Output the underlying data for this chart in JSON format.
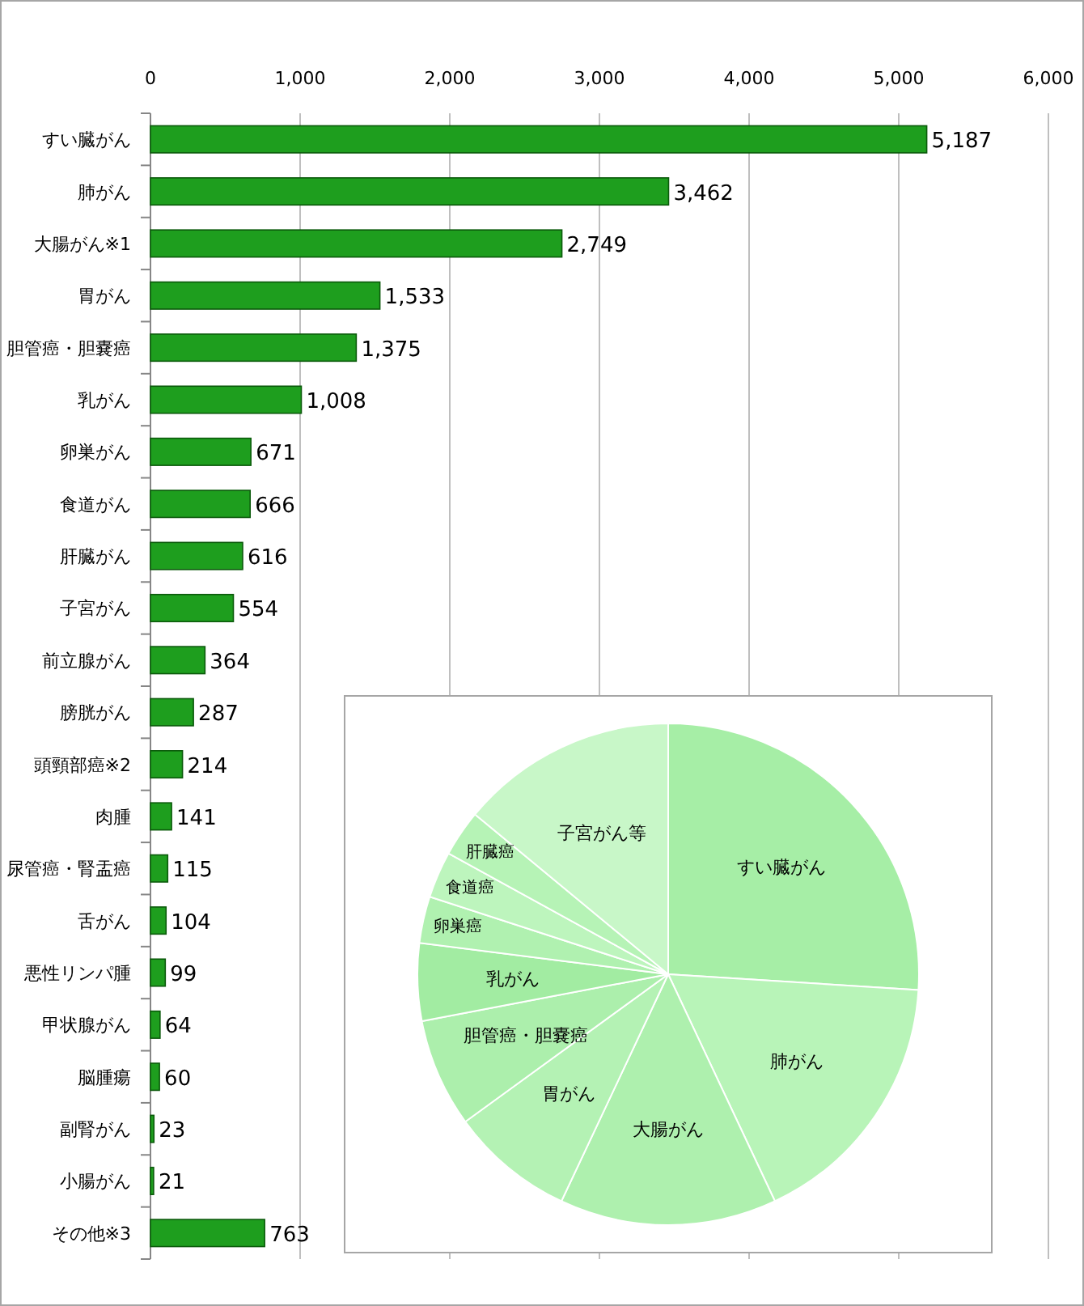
{
  "chart_data": [
    {
      "type": "bar",
      "orientation": "horizontal",
      "categories": [
        "すい臓がん",
        "肺がん",
        "大腸がん※1",
        "胃がん",
        "胆管癌・胆嚢癌",
        "乳がん",
        "卵巣がん",
        "食道がん",
        "肝臓がん",
        "子宮がん",
        "前立腺がん",
        "膀胱がん",
        "頭頸部癌※2",
        "肉腫",
        "尿管癌・腎盂癌",
        "舌がん",
        "悪性リンパ腫",
        "甲状腺がん",
        "脳腫瘍",
        "副腎がん",
        "小腸がん",
        "その他※3"
      ],
      "values": [
        5187,
        3462,
        2749,
        1533,
        1375,
        1008,
        671,
        666,
        616,
        554,
        364,
        287,
        214,
        141,
        115,
        104,
        99,
        64,
        60,
        23,
        21,
        763
      ],
      "value_labels": [
        "5,187",
        "3,462",
        "2,749",
        "1,533",
        "1,375",
        "1,008",
        "671",
        "666",
        "616",
        "554",
        "364",
        "287",
        "214",
        "141",
        "115",
        "104",
        "99",
        "64",
        "60",
        "23",
        "21",
        "763"
      ],
      "color": "#1e9e1e",
      "xlim": [
        0,
        6000
      ],
      "xticks": [
        0,
        {
          "value": 1000,
          "label": "1,000"
        },
        {
          "value": 2000,
          "label": "2,000"
        },
        {
          "value": 3000,
          "label": "3,000"
        },
        {
          "value": 4000,
          "label": "4,000"
        },
        {
          "value": 5000,
          "label": "5,000"
        },
        {
          "value": 6000,
          "label": "6,000"
        }
      ],
      "grid": "x"
    },
    {
      "type": "pie",
      "categories": [
        "すい臓がん",
        "肺がん",
        "大腸がん",
        "胃がん",
        "胆管癌・胆嚢癌",
        "乳がん",
        "卵巣癌",
        "食道癌",
        "肝臓癌",
        "子宮がん等"
      ],
      "values": [
        26,
        17,
        14,
        8,
        7,
        5,
        3,
        3,
        3,
        14
      ],
      "colors": [
        "#a6eea6",
        "#b8f4b8",
        "#aef0ae",
        "#b4f2b4",
        "#acefac",
        "#a2eca2",
        "#b0f1b0",
        "#bdf5bd",
        "#b6f3b6",
        "#c8f7c8"
      ]
    }
  ]
}
